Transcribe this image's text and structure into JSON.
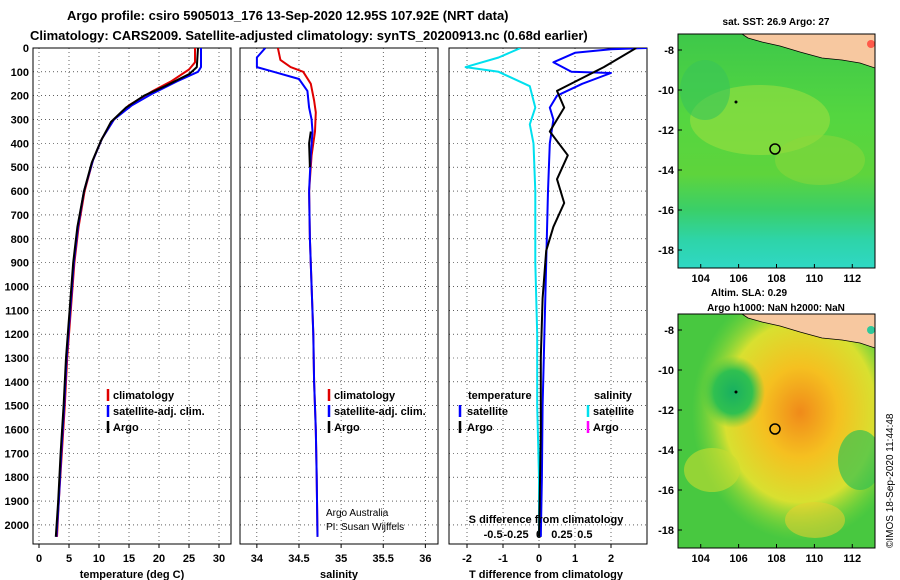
{
  "title": {
    "line1": "Argo profile: csiro 5905013_176 13-Sep-2020 12.95S 107.92E (NRT data)",
    "line2": "Climatology: CARS2009. Satellite-adjusted climatology: synTS_20200913.nc (0.68d earlier)"
  },
  "colors": {
    "climatology": "#e00000",
    "satellite": "#0000ff",
    "argo": "#000000",
    "cyan": "#00e0ee",
    "magenta": "#ff00ff",
    "land": "#f7c8a0"
  },
  "chart_data": [
    {
      "type": "line",
      "name": "temperature-profile",
      "xlabel": "temperature (deg C)",
      "ylabel": "depth",
      "xlim": [
        -1,
        32
      ],
      "ylim": [
        2080,
        0
      ],
      "xticks": [
        "0",
        "5",
        "10",
        "15",
        "20",
        "25",
        "30"
      ],
      "xtick_values": [
        0,
        5,
        10,
        15,
        20,
        25,
        30
      ],
      "yticks": [
        "0",
        "100",
        "200",
        "300",
        "400",
        "500",
        "600",
        "700",
        "800",
        "900",
        "1000",
        "1100",
        "1200",
        "1300",
        "1400",
        "1500",
        "1600",
        "1700",
        "1800",
        "1900",
        "2000"
      ],
      "ytick_values": [
        0,
        100,
        200,
        300,
        400,
        500,
        600,
        700,
        800,
        900,
        1000,
        1100,
        1200,
        1300,
        1400,
        1500,
        1600,
        1700,
        1800,
        1900,
        2000
      ],
      "legend": [
        "climatology",
        "satellite-adj. clim.",
        "Argo"
      ],
      "series": [
        {
          "name": "climatology",
          "color": "#e00000",
          "points": [
            [
              26,
              0
            ],
            [
              26,
              60
            ],
            [
              25,
              90
            ],
            [
              22,
              140
            ],
            [
              19,
              180
            ],
            [
              15,
              240
            ],
            [
              12.5,
              300
            ],
            [
              10.5,
              380
            ],
            [
              9,
              470
            ],
            [
              7.6,
              600
            ],
            [
              6.6,
              750
            ],
            [
              5.9,
              900
            ],
            [
              5.3,
              1100
            ],
            [
              4.7,
              1300
            ],
            [
              4.3,
              1500
            ],
            [
              3.8,
              1700
            ],
            [
              3.3,
              1900
            ],
            [
              3.0,
              2050
            ]
          ]
        },
        {
          "name": "satellite-adj. clim.",
          "color": "#0000ff",
          "points": [
            [
              27,
              0
            ],
            [
              27,
              80
            ],
            [
              26.5,
              100
            ],
            [
              23,
              140
            ],
            [
              19,
              190
            ],
            [
              15.5,
              240
            ],
            [
              12.5,
              300
            ],
            [
              10.5,
              380
            ],
            [
              9,
              470
            ],
            [
              7.5,
              600
            ],
            [
              6.5,
              750
            ],
            [
              5.8,
              900
            ],
            [
              5.2,
              1100
            ],
            [
              4.6,
              1300
            ],
            [
              4.2,
              1500
            ],
            [
              3.7,
              1700
            ],
            [
              3.3,
              1900
            ],
            [
              2.9,
              2050
            ]
          ]
        },
        {
          "name": "Argo",
          "color": "#000000",
          "points": [
            [
              26.5,
              0
            ],
            [
              26.3,
              80
            ],
            [
              25,
              110
            ],
            [
              21,
              160
            ],
            [
              17.5,
              200
            ],
            [
              14.5,
              250
            ],
            [
              12,
              310
            ],
            [
              10.3,
              390
            ],
            [
              8.8,
              480
            ],
            [
              7.5,
              600
            ],
            [
              6.4,
              750
            ],
            [
              5.7,
              900
            ],
            [
              5.1,
              1100
            ],
            [
              4.5,
              1300
            ],
            [
              4.1,
              1500
            ],
            [
              3.6,
              1700
            ],
            [
              3.2,
              1900
            ],
            [
              2.8,
              2050
            ]
          ]
        }
      ]
    },
    {
      "type": "line",
      "name": "salinity-profile",
      "xlabel": "salinity",
      "xlim": [
        33.8,
        36.15
      ],
      "ylim": [
        2080,
        0
      ],
      "xticks": [
        "34",
        "34.5",
        "35",
        "35.5",
        "36"
      ],
      "xtick_values": [
        34,
        34.5,
        35,
        35.5,
        36
      ],
      "legend": [
        "climatology",
        "satellite-adj. clim.",
        "Argo"
      ],
      "annotations": [
        "Argo Australia",
        "PI: Susan Wijffels"
      ],
      "series": [
        {
          "name": "climatology",
          "color": "#e00000",
          "points": [
            [
              34.25,
              0
            ],
            [
              34.28,
              50
            ],
            [
              34.4,
              80
            ],
            [
              34.55,
              100
            ],
            [
              34.64,
              150
            ],
            [
              34.68,
              220
            ],
            [
              34.7,
              270
            ],
            [
              34.69,
              350
            ],
            [
              34.65,
              450
            ],
            [
              34.62,
              600
            ],
            [
              34.63,
              800
            ],
            [
              34.65,
              1000
            ],
            [
              34.67,
              1200
            ],
            [
              34.68,
              1400
            ],
            [
              34.7,
              1600
            ],
            [
              34.71,
              1800
            ],
            [
              34.72,
              2050
            ]
          ]
        },
        {
          "name": "satellite-adj. clim.",
          "color": "#0000ff",
          "points": [
            [
              34.1,
              0
            ],
            [
              34.0,
              40
            ],
            [
              34.0,
              80
            ],
            [
              34.2,
              100
            ],
            [
              34.5,
              130
            ],
            [
              34.6,
              180
            ],
            [
              34.62,
              250
            ],
            [
              34.65,
              300
            ],
            [
              34.66,
              350
            ],
            [
              34.64,
              450
            ],
            [
              34.62,
              600
            ],
            [
              34.63,
              800
            ],
            [
              34.65,
              1000
            ],
            [
              34.67,
              1200
            ],
            [
              34.68,
              1400
            ],
            [
              34.7,
              1600
            ],
            [
              34.71,
              1800
            ],
            [
              34.72,
              2050
            ]
          ]
        },
        {
          "name": "Argo",
          "color": "#000000",
          "points": [
            [
              34.64,
              350
            ],
            [
              34.62,
              400
            ],
            [
              34.63,
              500
            ]
          ]
        }
      ]
    },
    {
      "type": "line",
      "name": "difference-profile",
      "xlabel": "T difference from climatology",
      "xlabel_top": "S difference from climatology",
      "xlim": [
        -2.5,
        3.0
      ],
      "ylim": [
        2080,
        0
      ],
      "xticks": [
        "-2",
        "-1",
        "0",
        "1",
        "2"
      ],
      "xtick_values": [
        -2,
        -1,
        0,
        1,
        2
      ],
      "s_xticks": [
        "-0.5",
        "-0.25",
        "0",
        "0.25",
        "0.5"
      ],
      "s_xtick_values": [
        -0.5,
        -0.25,
        0,
        0.25,
        0.5
      ],
      "legend": {
        "temperature_header": "temperature",
        "salinity_header": "salinity",
        "satellite": "satellite",
        "argo": "Argo"
      },
      "series": [
        {
          "name": "temperature satellite",
          "color": "#0000ff",
          "units": "T",
          "points": [
            [
              3.0,
              0
            ],
            [
              2.0,
              5
            ],
            [
              1.0,
              20
            ],
            [
              0.4,
              60
            ],
            [
              0.9,
              100
            ],
            [
              2.0,
              105
            ],
            [
              1.2,
              150
            ],
            [
              0.5,
              200
            ],
            [
              0.3,
              250
            ],
            [
              0.4,
              300
            ],
            [
              0.3,
              400
            ],
            [
              0.25,
              600
            ],
            [
              0.2,
              900
            ],
            [
              0.15,
              1200
            ],
            [
              0.1,
              1500
            ],
            [
              0.08,
              1800
            ],
            [
              0.05,
              2050
            ]
          ]
        },
        {
          "name": "salinity satellite",
          "color": "#00e0ee",
          "units": "S",
          "points": [
            [
              -0.1,
              0
            ],
            [
              -0.22,
              40
            ],
            [
              -0.4,
              80
            ],
            [
              -0.22,
              100
            ],
            [
              -0.05,
              160
            ],
            [
              -0.02,
              250
            ],
            [
              -0.05,
              320
            ],
            [
              -0.03,
              400
            ],
            [
              -0.02,
              600
            ],
            [
              -0.02,
              900
            ],
            [
              -0.01,
              1200
            ],
            [
              -0.01,
              1500
            ],
            [
              0,
              1800
            ],
            [
              0,
              2050
            ]
          ]
        },
        {
          "name": "temperature Argo",
          "color": "#000000",
          "units": "T",
          "points": [
            [
              2.7,
              0
            ],
            [
              1.8,
              80
            ],
            [
              0.5,
              180
            ],
            [
              0.7,
              250
            ],
            [
              0.3,
              350
            ],
            [
              0.8,
              450
            ],
            [
              0.5,
              550
            ],
            [
              0.7,
              650
            ],
            [
              0.4,
              750
            ],
            [
              0.2,
              850
            ],
            [
              0.1,
              1050
            ],
            [
              0.05,
              1300
            ],
            [
              0.05,
              1600
            ],
            [
              0.02,
              1900
            ],
            [
              0.0,
              2050
            ]
          ]
        }
      ]
    }
  ],
  "maps": {
    "sst": {
      "title": "sat. SST: 26.9 Argo: 27",
      "lon_ticks": [
        "104",
        "106",
        "108",
        "110",
        "112"
      ],
      "lat_ticks": [
        "-8",
        "-10",
        "-12",
        "-14",
        "-16",
        "-18"
      ],
      "lon_values": [
        104,
        106,
        108,
        110,
        112
      ],
      "lat_values": [
        -8,
        -10,
        -12,
        -14,
        -16,
        -18
      ],
      "lonlim": [
        102.8,
        113.2
      ],
      "latlim": [
        -18.9,
        -7.2
      ],
      "float_position": [
        107.92,
        -12.95
      ]
    },
    "sla": {
      "title1": "Altim. SLA: 0.29",
      "title2": "Argo h1000: NaN h2000: NaN",
      "lon_ticks": [
        "104",
        "106",
        "108",
        "110",
        "112"
      ],
      "lat_ticks": [
        "-8",
        "-10",
        "-12",
        "-14",
        "-16",
        "-18"
      ],
      "lon_values": [
        104,
        106,
        108,
        110,
        112
      ],
      "lat_values": [
        -8,
        -10,
        -12,
        -14,
        -16,
        -18
      ],
      "lonlim": [
        102.8,
        113.2
      ],
      "latlim": [
        -18.9,
        -7.2
      ],
      "float_position": [
        107.92,
        -12.95
      ]
    }
  },
  "credit": "©IMOS 18-Sep-2020 11:44:48"
}
